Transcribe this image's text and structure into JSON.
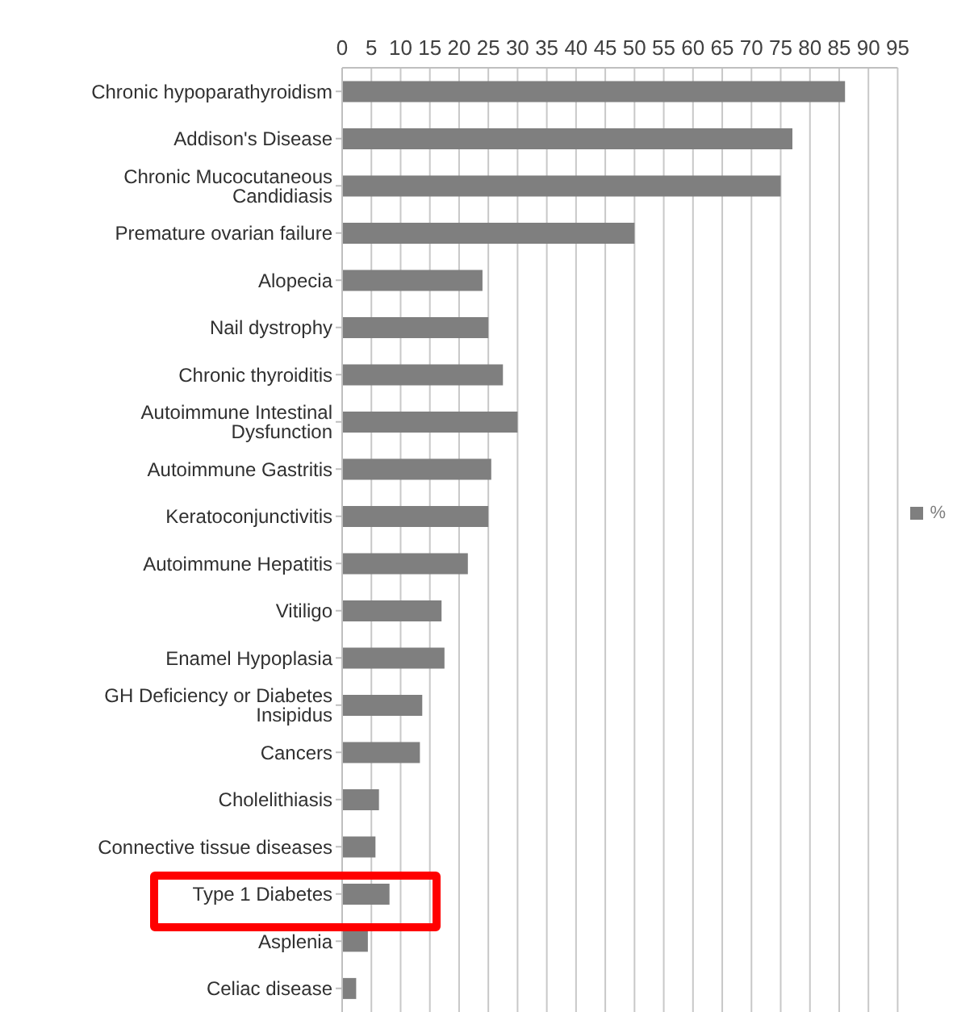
{
  "chart_data": {
    "type": "bar",
    "orientation": "horizontal",
    "categories": [
      "Chronic hypoparathyroidism",
      "Addison's Disease",
      "Chronic Mucocutaneous Candidiasis",
      "Premature ovarian failure",
      "Alopecia",
      "Nail dystrophy",
      "Chronic thyroiditis",
      "Autoimmune Intestinal Dysfunction",
      "Autoimmune Gastritis",
      "Keratoconjunctivitis",
      "Autoimmune Hepatitis",
      "Vitiligo",
      "Enamel Hypoplasia",
      "GH Deficiency or Diabetes Insipidus",
      "Cancers",
      "Cholelithiasis",
      "Connective tissue diseases",
      "Type 1 Diabetes",
      "Asplenia",
      "Celiac disease"
    ],
    "series": [
      {
        "name": "%",
        "color": "#7f7f7f",
        "values": [
          86,
          77,
          75,
          50,
          24,
          25,
          27.5,
          30,
          25.5,
          25,
          21.5,
          17,
          17.5,
          13.7,
          13.3,
          6.3,
          5.7,
          8.1,
          4.4,
          2.4
        ]
      }
    ],
    "xlim": [
      0,
      95
    ],
    "xticks": [
      0,
      5,
      10,
      15,
      20,
      25,
      30,
      35,
      40,
      45,
      50,
      55,
      60,
      65,
      70,
      75,
      80,
      85,
      90,
      95
    ],
    "grid": "x",
    "legend": "right"
  }
}
